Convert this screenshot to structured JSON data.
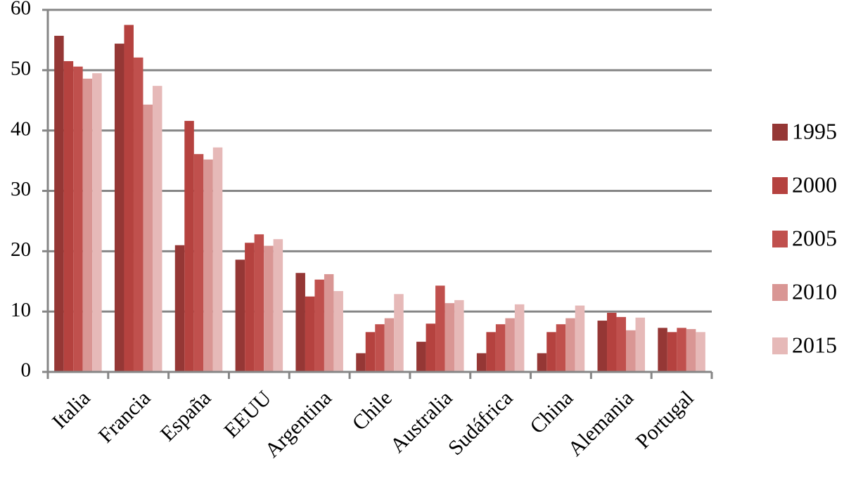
{
  "chart_data": {
    "type": "bar",
    "categories": [
      "Italia",
      "Francia",
      "España",
      "EEUU",
      "Argentina",
      "Chile",
      "Australia",
      "Sudáfrica",
      "China",
      "Alemania",
      "Portugal"
    ],
    "series": [
      {
        "name": "1995",
        "color": "#953735",
        "values": [
          55.7,
          54.4,
          21.0,
          18.6,
          16.4,
          3.1,
          5.0,
          3.1,
          3.1,
          8.5,
          7.3
        ]
      },
      {
        "name": "2000",
        "color": "#b5423f",
        "values": [
          51.5,
          57.5,
          41.6,
          21.4,
          12.5,
          6.6,
          8.0,
          6.6,
          6.6,
          9.8,
          6.6
        ]
      },
      {
        "name": "2005",
        "color": "#c0504d",
        "values": [
          50.6,
          52.1,
          36.1,
          22.8,
          15.3,
          7.9,
          14.3,
          7.9,
          7.9,
          9.1,
          7.3
        ]
      },
      {
        "name": "2010",
        "color": "#d99694",
        "values": [
          48.6,
          44.3,
          35.2,
          20.9,
          16.2,
          8.9,
          11.4,
          8.9,
          8.9,
          6.9,
          7.1
        ]
      },
      {
        "name": "2015",
        "color": "#e6b9b8",
        "values": [
          49.5,
          47.4,
          37.2,
          22.0,
          13.4,
          12.9,
          11.9,
          11.2,
          11.0,
          9.0,
          6.6
        ]
      }
    ],
    "ylim": [
      0,
      60
    ],
    "yticks": [
      0,
      10,
      20,
      30,
      40,
      50,
      60
    ],
    "grid": true,
    "legend": "right"
  }
}
